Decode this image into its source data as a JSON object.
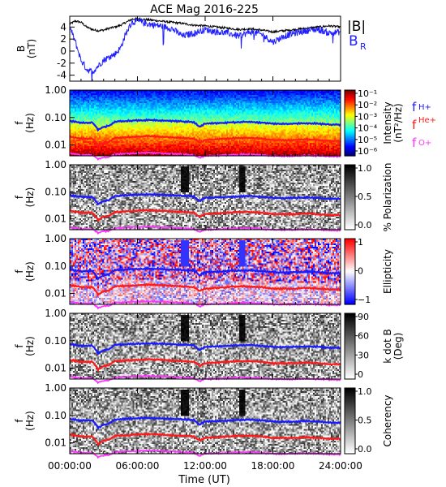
{
  "title": "ACE Mag 2016-225",
  "colors": {
    "b_total": "#000000",
    "b_r": "#1f1fff",
    "f_h": "#1a1aff",
    "f_he": "#ff1a1a",
    "f_o": "#ff33ff",
    "frame": "#000000"
  },
  "chart_data": [
    {
      "type": "line",
      "panel": "field",
      "ylabel_main": "B",
      "ylabel_unit": "(nT)",
      "ylim": [
        -5,
        5.8
      ],
      "yticks": [
        4,
        2,
        0,
        -2,
        -4
      ],
      "xlim": [
        "00:00:00",
        "24:00:00"
      ],
      "legend": [
        {
          "label": "|B|",
          "color": "#000000"
        },
        {
          "label": "B",
          "sub": "R",
          "color": "#1f1fff"
        }
      ],
      "series": [
        {
          "name": "|B|",
          "x_hours": [
            0,
            0.5,
            1,
            1.5,
            2,
            2.5,
            3,
            3.5,
            4,
            4.5,
            5,
            5.5,
            6,
            7,
            8,
            9,
            10,
            11,
            12,
            13,
            14,
            15,
            16,
            17,
            18,
            19,
            20,
            21,
            22,
            23,
            24
          ],
          "values": [
            4.5,
            5.0,
            4.8,
            4.0,
            3.6,
            3.4,
            3.5,
            3.8,
            4.0,
            4.3,
            4.8,
            5.3,
            5.4,
            5.2,
            5.0,
            4.8,
            4.6,
            4.3,
            4.2,
            4.0,
            3.8,
            3.6,
            3.7,
            3.5,
            3.2,
            3.4,
            3.6,
            3.8,
            4.0,
            4.2,
            4.0
          ]
        },
        {
          "name": "B_R",
          "x_hours": [
            0,
            0.5,
            1,
            1.5,
            2,
            2.5,
            3,
            3.5,
            4,
            4.5,
            5,
            5.5,
            6,
            7,
            8,
            9,
            10,
            11,
            12,
            13,
            14,
            15,
            16,
            17,
            18,
            19,
            20,
            21,
            22,
            23,
            24
          ],
          "values": [
            4.0,
            1.5,
            -1.5,
            -3.0,
            -3.5,
            -2.5,
            -1.5,
            -1.0,
            -0.5,
            0.5,
            3.0,
            4.8,
            5.0,
            4.5,
            4.2,
            3.8,
            2.5,
            3.0,
            3.6,
            3.2,
            3.0,
            2.5,
            3.2,
            2.8,
            1.5,
            2.5,
            3.0,
            3.4,
            3.6,
            3.0,
            3.2
          ]
        }
      ]
    },
    {
      "type": "heatmap",
      "panel": "intensity",
      "ylabel_main": "f",
      "ylabel_unit": "(Hz)",
      "ylim": [
        0.004,
        1.0
      ],
      "yticks": [
        "1.00",
        "0.10",
        "0.01"
      ],
      "colorbar_label": "Intensity",
      "colorbar_unit": "(nT²/Hz)",
      "colorbar_ticks": [
        "10⁻¹",
        "10⁻²",
        "10⁻³",
        "10⁻⁴",
        "10⁻⁵",
        "10⁻⁶"
      ],
      "colorbar_scale": "jet",
      "legend": [
        {
          "label": "f",
          "sub": "H+",
          "color": "#1a1aff"
        },
        {
          "label": "f",
          "sub": "He+",
          "color": "#ff1a1a"
        },
        {
          "label": "f",
          "sub": "O+",
          "color": "#ff33ff"
        }
      ]
    },
    {
      "type": "heatmap",
      "panel": "polarization",
      "ylabel_main": "f",
      "ylabel_unit": "(Hz)",
      "yticks": [
        "1.00",
        "0.10",
        "0.01"
      ],
      "colorbar_label": "% Polarization",
      "colorbar_ticks": [
        "1.0",
        "0.5",
        "0.0"
      ],
      "colorbar_scale": "gray"
    },
    {
      "type": "heatmap",
      "panel": "ellipticity",
      "ylabel_main": "f",
      "ylabel_unit": "(Hz)",
      "yticks": [
        "1.00",
        "0.10",
        "0.01"
      ],
      "colorbar_label": "Ellipticity",
      "colorbar_ticks": [
        "1",
        "0",
        "−1"
      ],
      "colorbar_scale": "bwr"
    },
    {
      "type": "heatmap",
      "panel": "kdotb",
      "ylabel_main": "f",
      "ylabel_unit": "(Hz)",
      "yticks": [
        "1.00",
        "0.10",
        "0.01"
      ],
      "colorbar_label": "k dot B",
      "colorbar_unit": "(Deg)",
      "colorbar_ticks": [
        "90",
        "60",
        "30",
        "0"
      ],
      "colorbar_scale": "gray"
    },
    {
      "type": "heatmap",
      "panel": "coherency",
      "ylabel_main": "f",
      "ylabel_unit": "(Hz)",
      "yticks": [
        "1.00",
        "0.10",
        "0.01"
      ],
      "colorbar_label": "Coherency",
      "colorbar_ticks": [
        "1.0",
        "0.5",
        "0.0"
      ],
      "colorbar_scale": "gray"
    }
  ],
  "gyro_lines": {
    "x_hours": [
      0,
      1,
      2,
      2.5,
      3,
      3.5,
      4,
      5,
      6,
      7,
      8,
      9,
      10,
      11,
      11.5,
      12,
      13,
      14,
      15,
      16,
      17,
      18,
      19,
      20,
      21,
      22,
      23,
      24
    ],
    "f_h": [
      0.075,
      0.065,
      0.065,
      0.035,
      0.045,
      0.05,
      0.07,
      0.075,
      0.078,
      0.08,
      0.078,
      0.075,
      0.072,
      0.068,
      0.045,
      0.06,
      0.062,
      0.065,
      0.068,
      0.07,
      0.065,
      0.06,
      0.058,
      0.06,
      0.062,
      0.06,
      0.055,
      0.055
    ],
    "f_he": [
      0.02,
      0.017,
      0.017,
      0.009,
      0.012,
      0.013,
      0.018,
      0.019,
      0.02,
      0.021,
      0.02,
      0.019,
      0.018,
      0.017,
      0.012,
      0.015,
      0.016,
      0.017,
      0.018,
      0.018,
      0.017,
      0.015,
      0.015,
      0.015,
      0.016,
      0.015,
      0.014,
      0.014
    ],
    "f_o": [
      0.005,
      0.0043,
      0.0043,
      0.003,
      0.0035,
      0.0036,
      0.0046,
      0.0048,
      0.005,
      0.0052,
      0.005,
      0.0048,
      0.0046,
      0.0043,
      0.0033,
      0.004,
      0.0041,
      0.0043,
      0.0045,
      0.0046,
      0.0043,
      0.004,
      0.0039,
      0.004,
      0.0041,
      0.004,
      0.0038,
      0.0038
    ]
  },
  "x_axis": {
    "tick_labels": [
      "00:00:00",
      "06:00:00",
      "12:00:00",
      "18:00:00",
      "24:00:00"
    ],
    "tick_hours": [
      0,
      6,
      12,
      18,
      24
    ],
    "label": "Time (UT)"
  }
}
